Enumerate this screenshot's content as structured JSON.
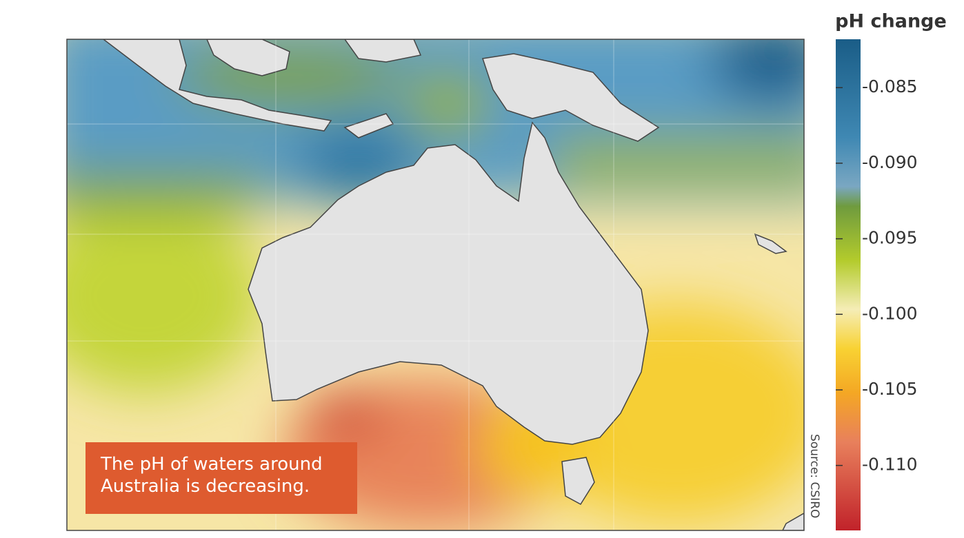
{
  "legend": {
    "title": "pH change",
    "clim": [
      -0.1143,
      -0.0818
    ],
    "ticks": [
      -0.085,
      {
        "value": -0.09,
        "label": "-0.090"
      },
      -0.095,
      {
        "value": -0.1,
        "label": "-0.100"
      },
      -0.105,
      {
        "value": -0.11,
        "label": "-0.110"
      }
    ]
  },
  "annotation": "The pH of waters around Australia is decreasing.",
  "source": "Source: CSIRO"
}
